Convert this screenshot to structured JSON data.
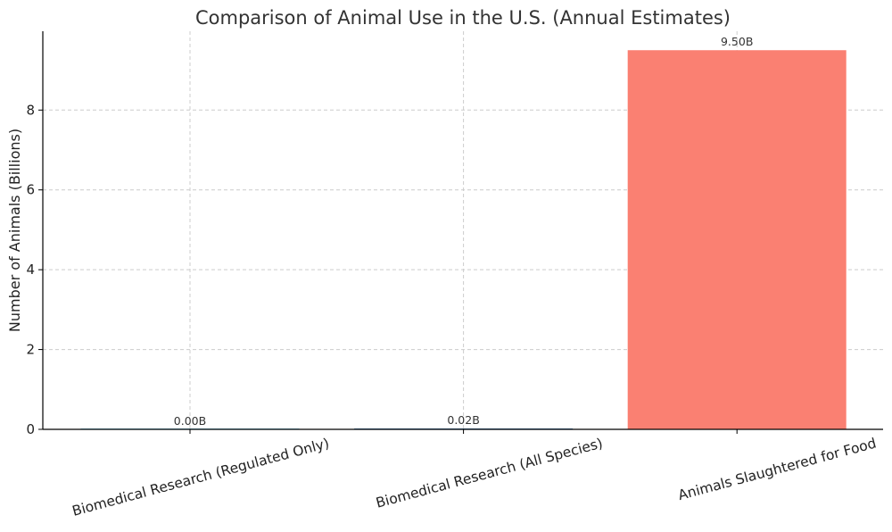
{
  "chart_data": {
    "type": "bar",
    "title": "Comparison of Animal Use in the U.S. (Annual Estimates)",
    "xlabel": "",
    "ylabel": "Number of Animals (Billions)",
    "categories": [
      "Biomedical Research (Regulated Only)",
      "Biomedical Research (All Species)",
      "Animals Slaughtered for Food"
    ],
    "values": [
      0.0008,
      0.02,
      9.5
    ],
    "data_labels": [
      "0.00B",
      "0.02B",
      "9.50B"
    ],
    "colors": [
      "#87ceeb",
      "#4682b4",
      "#fa8072"
    ],
    "ylim": [
      0,
      9.975
    ],
    "yticks": [
      0,
      2,
      4,
      6,
      8
    ],
    "grid": true,
    "legend": "none"
  }
}
